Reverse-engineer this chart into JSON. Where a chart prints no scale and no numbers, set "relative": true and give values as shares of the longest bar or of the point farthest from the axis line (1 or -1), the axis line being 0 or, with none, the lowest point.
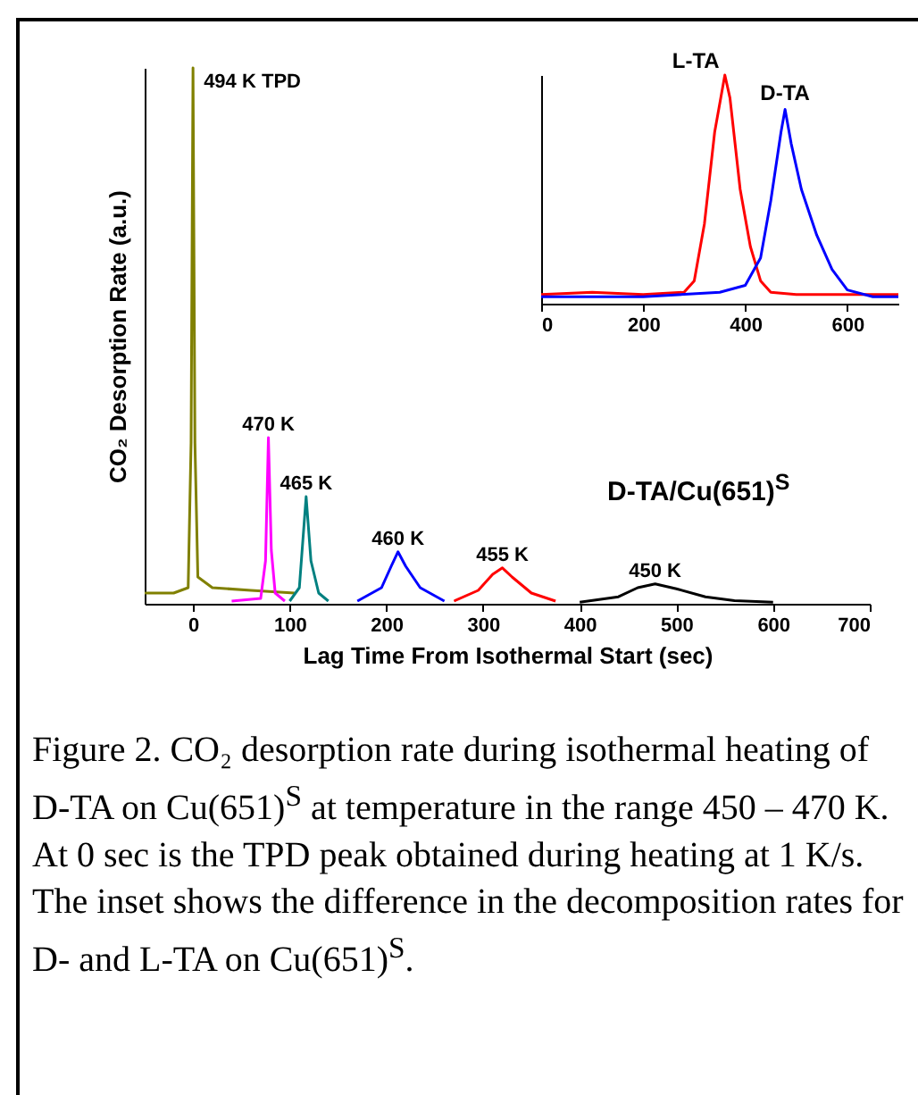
{
  "chart_data": [
    {
      "type": "line",
      "relative": true,
      "xlabel": "Lag Time From Isothermal Start (sec)",
      "ylabel": "CO₂ Desorption Rate (a.u.)",
      "xlim": [
        -50,
        700
      ],
      "xticks": [
        0,
        100,
        200,
        300,
        400,
        500,
        600,
        700
      ],
      "grid": false,
      "legend": false,
      "annotations": [
        "D-TA/Cu(651)$^{S}$",
        "Figure 2.  CO₂ desorption rate during isothermal heating of D-TA on Cu(651)$^{S}$ at temperature in the range 450 – 470 K.  At 0 sec is the TPD peak obtained during heating at 1 K/s.  The inset shows the difference in the decomposition rates for D- and L-TA on Cu(651)$^{S}$."
      ],
      "series": [
        {
          "name": "494 K TPD",
          "color": "#808000",
          "x": [
            -50,
            -20,
            -5,
            -2,
            0,
            2,
            5,
            20,
            60,
            105
          ],
          "values": [
            0.02,
            0.02,
            0.03,
            0.3,
            1.0,
            0.3,
            0.05,
            0.03,
            0.025,
            0.02
          ]
        },
        {
          "name": "470 K",
          "color": "#ff00ff",
          "x": [
            40,
            70,
            75,
            78,
            81,
            85,
            95
          ],
          "values": [
            0.005,
            0.01,
            0.08,
            0.31,
            0.1,
            0.02,
            0.005
          ]
        },
        {
          "name": "465 K",
          "color": "#008080",
          "x": [
            100,
            110,
            117,
            122,
            130,
            140
          ],
          "values": [
            0.005,
            0.03,
            0.2,
            0.08,
            0.02,
            0.005
          ]
        },
        {
          "name": "460 K",
          "color": "#0000ff",
          "x": [
            170,
            195,
            205,
            212,
            220,
            235,
            260
          ],
          "values": [
            0.005,
            0.03,
            0.07,
            0.097,
            0.07,
            0.03,
            0.005
          ]
        },
        {
          "name": "455 K",
          "color": "#ff0000",
          "x": [
            270,
            295,
            310,
            320,
            330,
            350,
            375
          ],
          "values": [
            0.005,
            0.025,
            0.055,
            0.067,
            0.05,
            0.02,
            0.005
          ]
        },
        {
          "name": "450 K",
          "color": "#000000",
          "x": [
            400,
            440,
            460,
            478,
            500,
            530,
            560,
            600
          ],
          "values": [
            0.003,
            0.013,
            0.03,
            0.037,
            0.028,
            0.013,
            0.006,
            0.003
          ]
        }
      ]
    },
    {
      "type": "line",
      "relative": true,
      "xlim": [
        0,
        700
      ],
      "xticks": [
        0,
        200,
        400,
        600
      ],
      "grid": false,
      "legend": false,
      "series": [
        {
          "name": "L-TA",
          "color": "#ff0000",
          "x": [
            0,
            100,
            200,
            280,
            300,
            320,
            340,
            360,
            370,
            390,
            410,
            430,
            450,
            500,
            600,
            700
          ],
          "values": [
            0.04,
            0.05,
            0.04,
            0.05,
            0.1,
            0.35,
            0.75,
            1.0,
            0.9,
            0.5,
            0.25,
            0.1,
            0.05,
            0.04,
            0.04,
            0.04
          ]
        },
        {
          "name": "D-TA",
          "color": "#0000ff",
          "x": [
            0,
            200,
            350,
            400,
            430,
            450,
            470,
            478,
            490,
            510,
            540,
            570,
            600,
            650,
            700
          ],
          "values": [
            0.03,
            0.03,
            0.05,
            0.08,
            0.2,
            0.45,
            0.75,
            0.85,
            0.7,
            0.5,
            0.3,
            0.15,
            0.06,
            0.03,
            0.03
          ]
        }
      ]
    }
  ]
}
